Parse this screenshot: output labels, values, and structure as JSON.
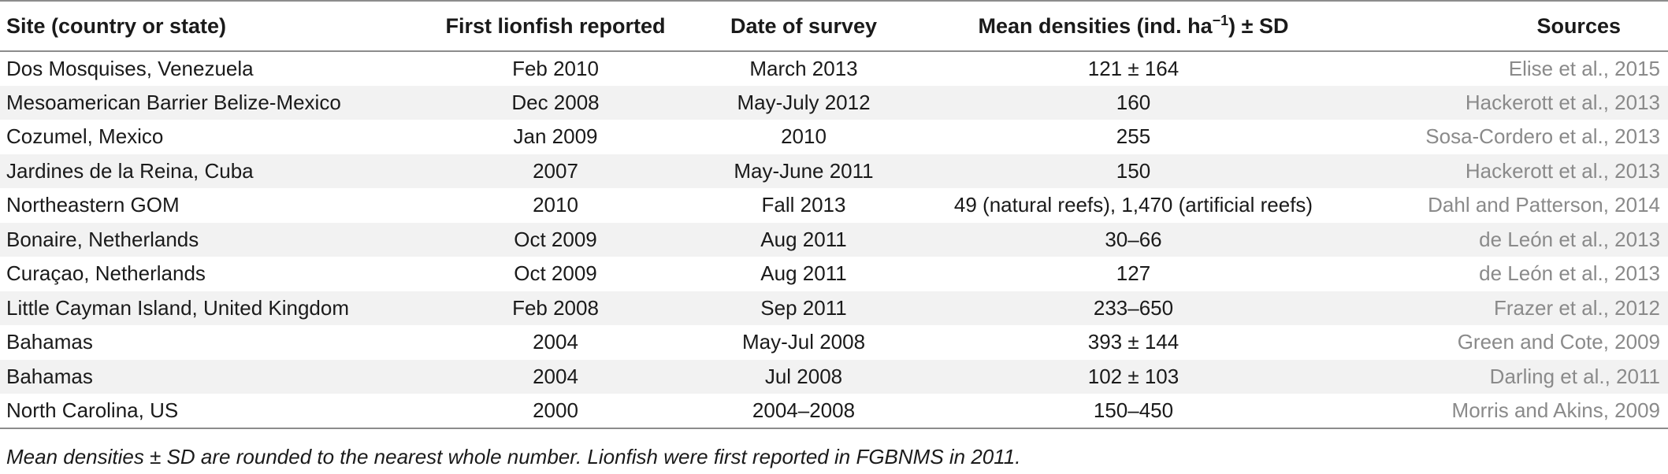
{
  "table": {
    "headers": {
      "site": "Site (country or state)",
      "first": "First lionfish reported",
      "date": "Date of survey",
      "density_prefix": "Mean densities (ind. ha",
      "density_sup": "−1",
      "density_suffix": ") ± SD",
      "sources": "Sources"
    },
    "rows": [
      {
        "site": "Dos Mosquises, Venezuela",
        "first": "Feb 2010",
        "date": "March 2013",
        "density": "121 ± 164",
        "source": "Elise et al., 2015"
      },
      {
        "site": "Mesoamerican Barrier Belize-Mexico",
        "first": "Dec 2008",
        "date": "May-July 2012",
        "density": "160",
        "source": "Hackerott et al., 2013"
      },
      {
        "site": "Cozumel, Mexico",
        "first": "Jan 2009",
        "date": "2010",
        "density": "255",
        "source": "Sosa-Cordero et al., 2013"
      },
      {
        "site": "Jardines de la Reina, Cuba",
        "first": "2007",
        "date": "May-June 2011",
        "density": "150",
        "source": "Hackerott et al., 2013"
      },
      {
        "site": "Northeastern GOM",
        "first": "2010",
        "date": "Fall 2013",
        "density": "49 (natural reefs), 1,470 (artificial reefs)",
        "source": "Dahl and Patterson, 2014"
      },
      {
        "site": "Bonaire, Netherlands",
        "first": "Oct 2009",
        "date": "Aug 2011",
        "density": "30–66",
        "source": "de León et al., 2013"
      },
      {
        "site": "Curaçao, Netherlands",
        "first": "Oct 2009",
        "date": "Aug 2011",
        "density": "127",
        "source": "de León et al., 2013"
      },
      {
        "site": "Little Cayman Island, United Kingdom",
        "first": "Feb 2008",
        "date": "Sep 2011",
        "density": "233–650",
        "source": "Frazer et al., 2012"
      },
      {
        "site": "Bahamas",
        "first": "2004",
        "date": "May-Jul 2008",
        "density": "393 ± 144",
        "source": "Green and Cote, 2009"
      },
      {
        "site": "Bahamas",
        "first": "2004",
        "date": "Jul 2008",
        "density": "102 ± 103",
        "source": "Darling et al., 2011"
      },
      {
        "site": "North Carolina, US",
        "first": "2000",
        "date": "2004–2008",
        "density": "150–450",
        "source": "Morris and Akins, 2009"
      }
    ]
  },
  "footnote": "Mean densities ± SD are rounded to the nearest whole number. Lionfish were first reported in FGBNMS in 2011.",
  "colors": {
    "source_link": "#8a8a8a",
    "stripe": "#f2f2f2",
    "rule": "#8c8c8c"
  }
}
